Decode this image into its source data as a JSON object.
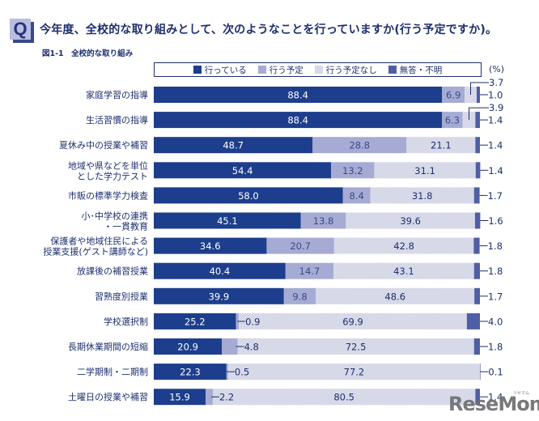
{
  "header": {
    "q_icon_label": "Q",
    "question": "今年度、全校的な取り組みとして、次のようなことを行っていますか(行う予定ですか)。",
    "figure_title": "図1-1　全校的な取り組み"
  },
  "watermark": {
    "text": "ReseMom",
    "kana": "リセマム"
  },
  "colors": {
    "doing": "#1d3e8c",
    "planned": "#a6abd3",
    "not_planned_a": "#b9bdd6",
    "not_planned_b": "#f4f5fa",
    "no_answer": "#4f5ea5",
    "text": "#1d2f6e"
  },
  "chart_data": {
    "type": "bar",
    "orientation": "horizontal",
    "stacked": true,
    "title": "図1-1　全校的な取り組み",
    "unit_label": "(%)",
    "xlim": [
      0,
      100
    ],
    "legend_position": "top",
    "categories": [
      "家庭学習の指導",
      "生活習慣の指導",
      "夏休み中の授業や補習",
      "地域や県などを単位\nとした学力テスト",
      "市販の標準学力検査",
      "小･中学校の連携\n・一貫教育",
      "保護者や地域住民による\n授業支援(ゲスト講師など)",
      "放課後の補習授業",
      "習熟度別授業",
      "学校選択制",
      "長期休業期間の短縮",
      "二学期制・二期制",
      "土曜日の授業や補習"
    ],
    "series": [
      {
        "name": "行っている",
        "key": "doing",
        "values": [
          88.4,
          88.4,
          48.7,
          54.4,
          58.0,
          45.1,
          34.6,
          40.4,
          39.9,
          25.2,
          20.9,
          22.3,
          15.9
        ]
      },
      {
        "name": "行う予定",
        "key": "planned",
        "values": [
          6.9,
          6.3,
          28.8,
          13.2,
          8.4,
          13.8,
          20.7,
          14.7,
          9.8,
          0.9,
          4.8,
          0.5,
          2.2
        ]
      },
      {
        "name": "行う予定なし",
        "key": "not_planned",
        "values": [
          3.7,
          3.9,
          21.1,
          31.1,
          31.8,
          39.6,
          42.8,
          43.1,
          48.6,
          69.9,
          72.5,
          77.2,
          80.5
        ]
      },
      {
        "name": "無答・不明",
        "key": "no_answer",
        "values": [
          1.0,
          1.4,
          1.4,
          1.4,
          1.7,
          1.6,
          1.8,
          1.8,
          1.7,
          4.0,
          1.8,
          0.1,
          1.4
        ]
      }
    ],
    "value_labels": {
      "doing": [
        "88.4",
        "88.4",
        "48.7",
        "54.4",
        "58.0",
        "45.1",
        "34.6",
        "40.4",
        "39.9",
        "25.2",
        "20.9",
        "22.3",
        "15.9"
      ],
      "planned": [
        "6.9",
        "6.3",
        "28.8",
        "13.2",
        "8.4",
        "13.8",
        "20.7",
        "14.7",
        "9.8",
        "0.9",
        "4.8",
        "0.5",
        "2.2"
      ],
      "not_planned": [
        "3.7",
        "3.9",
        "21.1",
        "31.1",
        "31.8",
        "39.6",
        "42.8",
        "43.1",
        "48.6",
        "69.9",
        "72.5",
        "77.2",
        "80.5"
      ],
      "no_answer": [
        "1.0",
        "1.4",
        "1.4",
        "1.4",
        "1.7",
        "1.6",
        "1.8",
        "1.8",
        "1.7",
        "4.0",
        "1.8",
        "0.1",
        "1.4"
      ]
    },
    "callout_rows": {
      "not_planned_above": [
        0,
        1
      ],
      "planned_outside": [
        9,
        10,
        11,
        12
      ]
    }
  }
}
